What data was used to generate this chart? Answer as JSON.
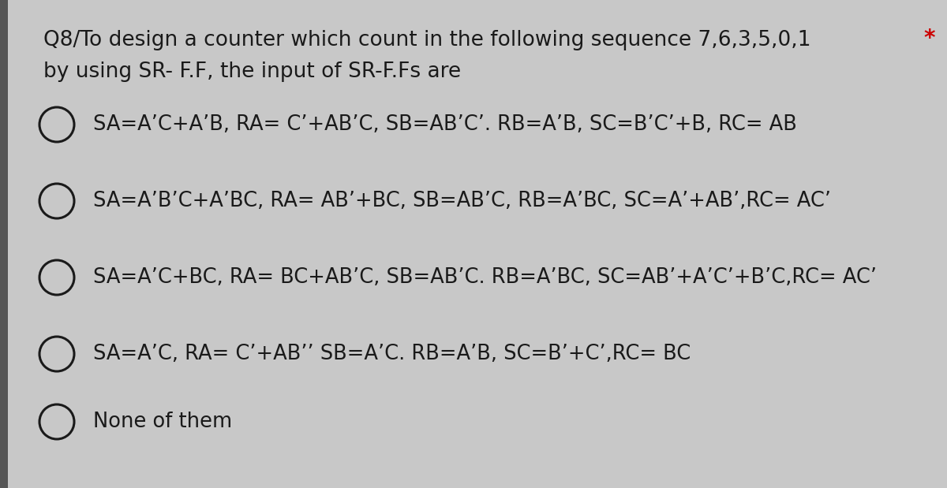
{
  "bg_color": "#c8c8c8",
  "left_bar_color": "#555555",
  "text_color": "#1a1a1a",
  "star_color": "#cc0000",
  "title_line1": "Q8/To design a counter which count in the following sequence 7,6,3,5,0,1",
  "title_line2": "by using SR- F.F, the input of SR-F.Fs are",
  "star": "*",
  "options": [
    "SA=A’C+A’B, RA= C’+AB’C, SB=AB’C’. RB=A’B, SC=B’C’+B, RC= AB",
    "SA=A’B’C+A’BC, RA= AB’+BC, SB=AB’C, RB=A’BC, SC=A’+AB’,RC= AC’",
    "SA=A’C+BC, RA= BC+AB’C, SB=AB’C. RB=A’BC, SC=AB’+A’C’+B’C,RC= AC’",
    "SA=A’C, RA= C’+AB’’ SB=A’C. RB=A’B, SC=B’+C’,RC= BC",
    "None of them"
  ],
  "title_fontsize": 19,
  "option_fontsize": 18.5,
  "figsize": [
    12.0,
    6.19
  ],
  "dpi": 100
}
